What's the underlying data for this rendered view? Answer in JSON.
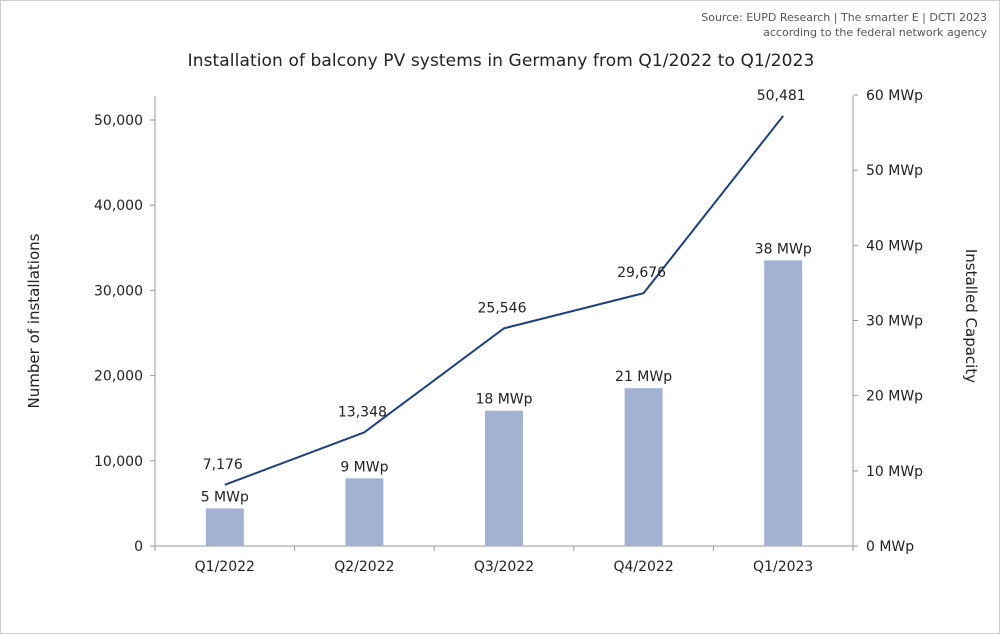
{
  "header": {
    "source_line1": "Source: EUPD Research | The smarter E | DCTI 2023",
    "source_line2": "according to the federal network agency"
  },
  "chart_data": {
    "type": "bar+line",
    "title": "Installation of balcony PV systems in Germany from Q1/2022 to Q1/2023",
    "categories": [
      "Q1/2022",
      "Q2/2022",
      "Q3/2022",
      "Q4/2022",
      "Q1/2023"
    ],
    "ylabel_left": "Number of installations",
    "ylabel_right": "Installed Capacity",
    "y_left_ticks": [
      "0",
      "10,000",
      "20,000",
      "30,000",
      "40,000",
      "50,000"
    ],
    "y_right_ticks": [
      "0 MWp",
      "10 MWp",
      "20 MWp",
      "30 MWp",
      "40 MWp",
      "50 MWp",
      "60 MWp"
    ],
    "y_left_range": [
      0,
      50000
    ],
    "y_right_range": [
      0,
      60
    ],
    "series": [
      {
        "name": "",
        "type": "line",
        "axis": "left",
        "values": [
          7176,
          13348,
          25546,
          29676,
          50481
        ],
        "labels": [
          "7,176",
          "13,348",
          "25,546",
          "29,676",
          "50,481"
        ],
        "color": "#1f3f7f"
      },
      {
        "name": "",
        "type": "bar",
        "axis": "right",
        "values": [
          5,
          9,
          18,
          21,
          38
        ],
        "labels": [
          "5 MWp",
          "9 MWp",
          "18 MWp",
          "21 MWp",
          "38 MWp"
        ],
        "color": "#a3b2d3"
      }
    ],
    "grid": false,
    "legend": "none"
  }
}
